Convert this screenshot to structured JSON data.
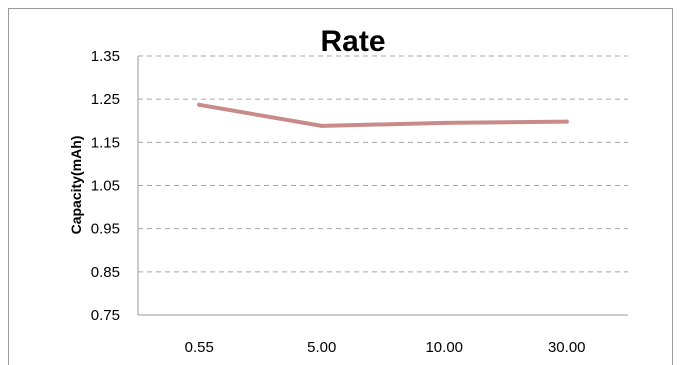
{
  "chart_data": {
    "type": "line",
    "title": "Rate",
    "xlabel": "",
    "ylabel": "Capacity(mAh)",
    "categories": [
      "0.55",
      "5.00",
      "10.00",
      "30.00"
    ],
    "series": [
      {
        "values": [
          1.237,
          1.188,
          1.195,
          1.198
        ]
      }
    ],
    "ylim": [
      0.75,
      1.35
    ],
    "yticks": [
      "0.75",
      "0.85",
      "0.95",
      "1.05",
      "1.15",
      "1.25",
      "1.35"
    ],
    "grid": true,
    "legend": "none",
    "colors": {
      "series": "#c98a8a",
      "grid": "#a6a6a6",
      "axis": "#999999"
    }
  }
}
